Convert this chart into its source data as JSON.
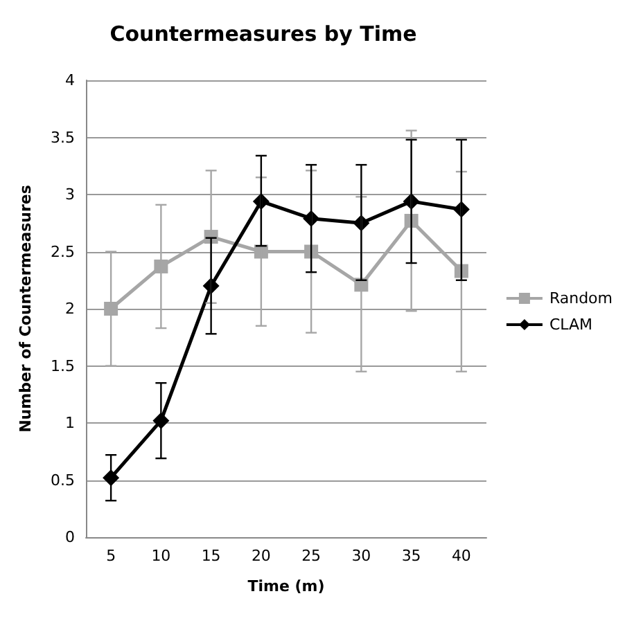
{
  "chart_data": {
    "type": "line",
    "title": "Countermeasures by Time",
    "xlabel": "Time (m)",
    "ylabel": "Number of Countermeasures",
    "categories": [
      "5",
      "10",
      "15",
      "20",
      "25",
      "30",
      "35",
      "40"
    ],
    "series": [
      {
        "name": "Random",
        "color": "#a6a6a6",
        "marker": "square",
        "values": [
          2.0,
          2.37,
          2.63,
          2.5,
          2.5,
          2.21,
          2.77,
          2.33
        ],
        "errors": [
          [
            1.5,
            2.5
          ],
          [
            1.83,
            2.91
          ],
          [
            2.05,
            3.21
          ],
          [
            1.85,
            3.15
          ],
          [
            1.79,
            3.21
          ],
          [
            1.45,
            2.98
          ],
          [
            1.98,
            3.56
          ],
          [
            1.45,
            3.2
          ]
        ]
      },
      {
        "name": "CLAM",
        "color": "#000000",
        "marker": "diamond",
        "values": [
          0.52,
          1.02,
          2.2,
          2.94,
          2.79,
          2.75,
          2.94,
          2.87
        ],
        "errors": [
          [
            0.32,
            0.72
          ],
          [
            0.69,
            1.35
          ],
          [
            1.78,
            2.62
          ],
          [
            2.55,
            3.34
          ],
          [
            2.32,
            3.26
          ],
          [
            2.25,
            3.26
          ],
          [
            2.4,
            3.48
          ],
          [
            2.25,
            3.48
          ]
        ]
      }
    ],
    "ylim": [
      0,
      4
    ],
    "yticks": [
      0,
      0.5,
      1,
      1.5,
      2,
      2.5,
      3,
      3.5,
      4
    ],
    "grid": "y",
    "legend": "right"
  }
}
